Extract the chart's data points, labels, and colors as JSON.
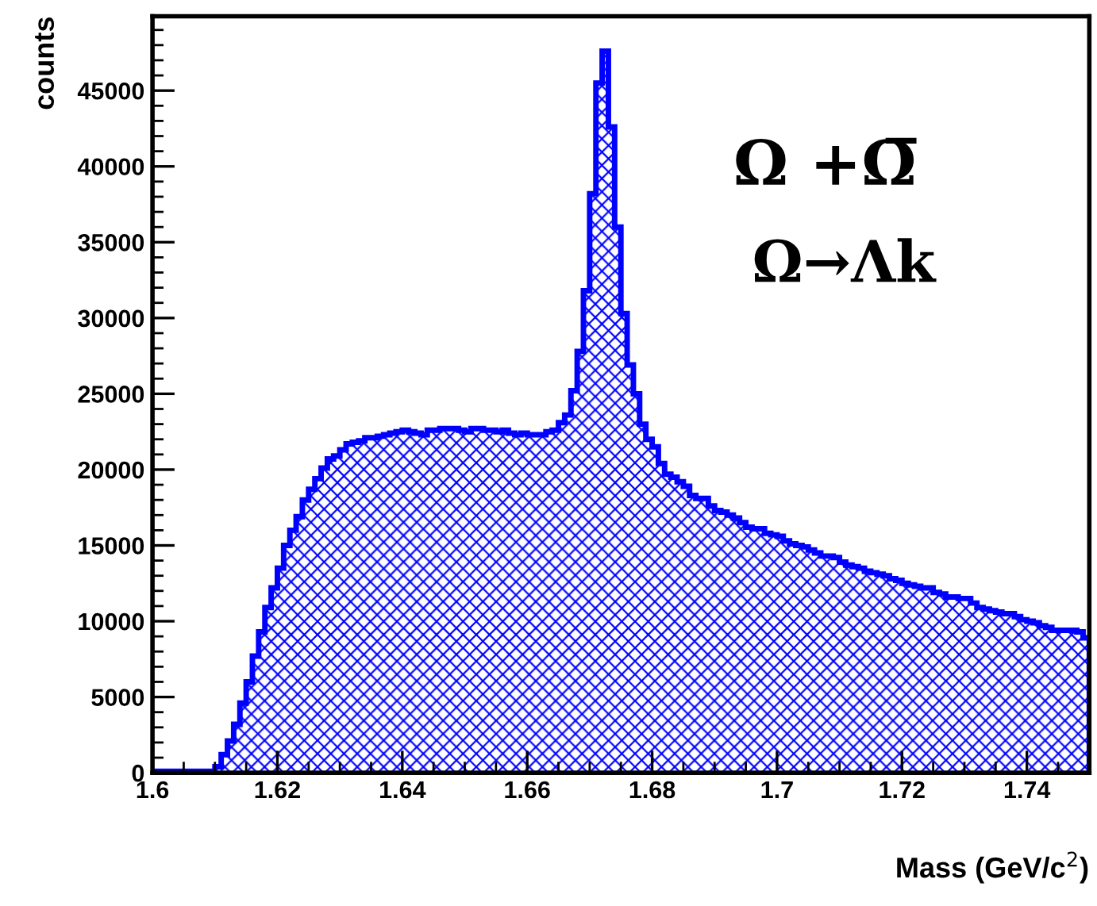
{
  "chart_data": {
    "type": "histogram",
    "xlabel": "Mass (GeV/c$^{2}$)",
    "ylabel": "counts",
    "annotations": [
      "Ω +Ω̅",
      "Ω→Λk"
    ],
    "color": "#0000ff",
    "bins": [
      1.6,
      1.601,
      1.602,
      1.603,
      1.604,
      1.605,
      1.606,
      1.607,
      1.608,
      1.609,
      1.61,
      1.611,
      1.612,
      1.613,
      1.614,
      1.615,
      1.616,
      1.617,
      1.618,
      1.619,
      1.62,
      1.621,
      1.622,
      1.623,
      1.624,
      1.625,
      1.626,
      1.627,
      1.628,
      1.629,
      1.63,
      1.631,
      1.632,
      1.633,
      1.634,
      1.635,
      1.636,
      1.637,
      1.638,
      1.639,
      1.64,
      1.641,
      1.642,
      1.643,
      1.644,
      1.645,
      1.646,
      1.647,
      1.648,
      1.649,
      1.65,
      1.651,
      1.652,
      1.653,
      1.654,
      1.655,
      1.656,
      1.657,
      1.658,
      1.659,
      1.66,
      1.661,
      1.662,
      1.663,
      1.664,
      1.665,
      1.666,
      1.667,
      1.668,
      1.669,
      1.67,
      1.671,
      1.672,
      1.673,
      1.674,
      1.675,
      1.676,
      1.677,
      1.678,
      1.679,
      1.68,
      1.681,
      1.682,
      1.683,
      1.684,
      1.685,
      1.686,
      1.687,
      1.688,
      1.689,
      1.69,
      1.691,
      1.692,
      1.693,
      1.694,
      1.695,
      1.696,
      1.697,
      1.698,
      1.699,
      1.7,
      1.701,
      1.702,
      1.703,
      1.704,
      1.705,
      1.706,
      1.707,
      1.708,
      1.709,
      1.71,
      1.711,
      1.712,
      1.713,
      1.714,
      1.715,
      1.716,
      1.717,
      1.718,
      1.719,
      1.72,
      1.721,
      1.722,
      1.723,
      1.724,
      1.725,
      1.726,
      1.727,
      1.728,
      1.729,
      1.73,
      1.731,
      1.732,
      1.733,
      1.734,
      1.735,
      1.736,
      1.737,
      1.738,
      1.739,
      1.74,
      1.741,
      1.742,
      1.743,
      1.744,
      1.745,
      1.746,
      1.747,
      1.748,
      1.749,
      1.75
    ],
    "values": [
      100,
      100,
      100,
      100,
      100,
      100,
      100,
      100,
      100,
      100,
      400,
      1200,
      2100,
      3200,
      4600,
      6000,
      7700,
      9300,
      10900,
      12200,
      13500,
      15000,
      16000,
      16900,
      18000,
      18700,
      19400,
      20100,
      20700,
      20900,
      21300,
      21700,
      21800,
      21900,
      22100,
      22100,
      22200,
      22300,
      22400,
      22500,
      22600,
      22500,
      22400,
      22300,
      22600,
      22600,
      22700,
      22700,
      22700,
      22600,
      22500,
      22700,
      22700,
      22600,
      22600,
      22500,
      22600,
      22400,
      22300,
      22400,
      22300,
      22300,
      22300,
      22500,
      22600,
      23100,
      23600,
      25200,
      27800,
      31800,
      38200,
      45500,
      47600,
      42600,
      36000,
      30300,
      26900,
      25000,
      23000,
      22000,
      21500,
      20400,
      19700,
      19500,
      19200,
      18900,
      18300,
      18100,
      18100,
      17600,
      17300,
      17200,
      17000,
      16800,
      16500,
      16200,
      16100,
      16100,
      15800,
      15700,
      15600,
      15300,
      15100,
      15000,
      14900,
      14700,
      14500,
      14300,
      14300,
      14200,
      13900,
      13700,
      13600,
      13500,
      13300,
      13200,
      13100,
      13000,
      12800,
      12700,
      12500,
      12400,
      12300,
      12200,
      12200,
      11900,
      11800,
      11600,
      11600,
      11500,
      11500,
      11200,
      10900,
      10800,
      10700,
      10600,
      10500,
      10500,
      10300,
      10100,
      10000,
      9900,
      9700,
      9600,
      9400,
      9400,
      9400,
      9400,
      9300,
      8900
    ],
    "xlim": [
      1.6,
      1.75
    ],
    "xticks": [
      1.6,
      1.62,
      1.64,
      1.66,
      1.68,
      1.7,
      1.72,
      1.74
    ],
    "ylim": [
      0,
      49900
    ],
    "yticks": [
      0,
      5000,
      10000,
      15000,
      20000,
      25000,
      30000,
      35000,
      40000,
      45000
    ],
    "grid": false
  }
}
